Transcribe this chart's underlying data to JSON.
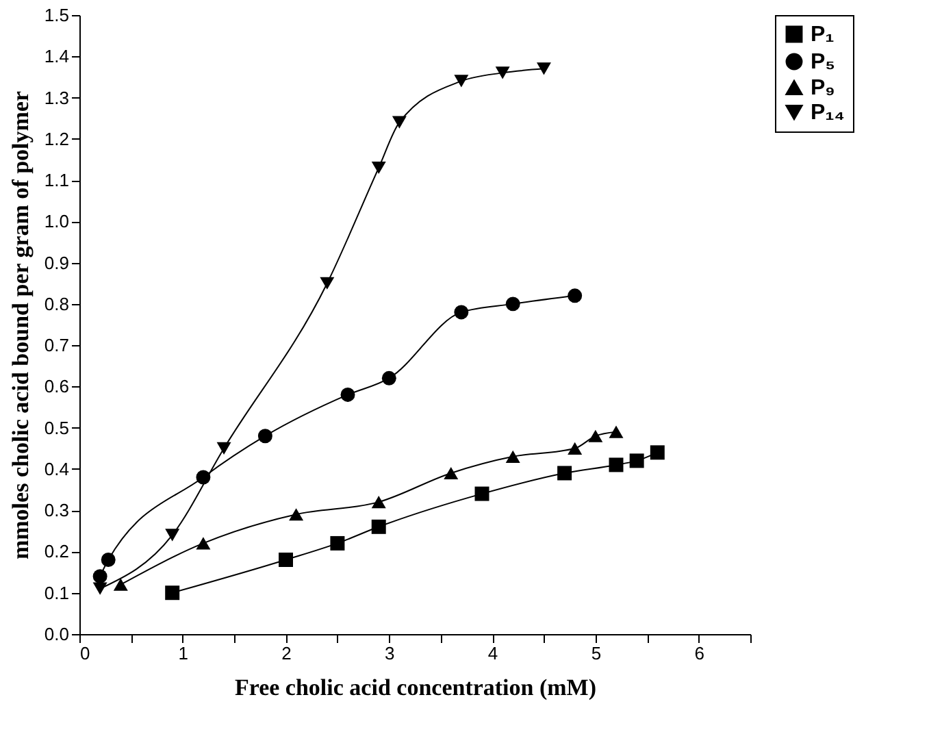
{
  "chart_data": {
    "type": "line",
    "xlabel": "Free cholic acid concentration (mM)",
    "ylabel": "mmoles cholic acid bound per gram of polymer",
    "xlim": [
      0,
      6.5
    ],
    "xticks": [
      0,
      {
        "value": 0.5,
        "label": null
      },
      1,
      {
        "value": 1.5,
        "label": null
      },
      2,
      {
        "value": 2.5,
        "label": null
      },
      3,
      {
        "value": 3.5,
        "label": null
      },
      4,
      {
        "value": 4.5,
        "label": null
      },
      5,
      {
        "value": 5.5,
        "label": null
      },
      6,
      {
        "value": 6.5,
        "label": null
      }
    ],
    "ylim": [
      0,
      1.5
    ],
    "yticks": [
      {
        "value": 0,
        "label": "0.0"
      },
      0.1,
      0.2,
      0.3,
      0.4,
      0.5,
      0.6,
      0.7,
      0.8,
      0.9,
      {
        "value": 1.0,
        "label": "1.0"
      },
      1.1,
      1.2,
      1.3,
      1.4,
      1.5
    ],
    "grid": false,
    "legend": "right",
    "line_style": "solid",
    "series": [
      {
        "name": "P₁",
        "color": "#000000",
        "marker": "square",
        "x": [
          0.9,
          2.0,
          2.5,
          2.9,
          3.9,
          4.7,
          5.2,
          5.4,
          5.6
        ],
        "values": [
          0.1,
          0.18,
          0.22,
          0.26,
          0.34,
          0.39,
          0.41,
          0.42,
          0.44
        ]
      },
      {
        "name": "P₅",
        "color": "#000000",
        "marker": "circle",
        "x": [
          0.2,
          0.28,
          1.2,
          1.8,
          2.6,
          3.0,
          3.7,
          4.2,
          4.8
        ],
        "values": [
          0.14,
          0.18,
          0.38,
          0.48,
          0.58,
          0.62,
          0.78,
          0.8,
          0.82
        ]
      },
      {
        "name": "P₉",
        "color": "#000000",
        "marker": "triangle",
        "x": [
          0.4,
          1.2,
          2.1,
          2.9,
          3.6,
          4.2,
          4.8,
          5.0,
          5.2
        ],
        "values": [
          0.12,
          0.22,
          0.29,
          0.32,
          0.39,
          0.43,
          0.45,
          0.48,
          0.49
        ]
      },
      {
        "name": "P₁₄",
        "color": "#000000",
        "marker": "triangle-down",
        "x": [
          0.2,
          0.9,
          1.4,
          2.4,
          2.9,
          3.1,
          3.7,
          4.1,
          4.5
        ],
        "values": [
          0.11,
          0.24,
          0.45,
          0.85,
          1.13,
          1.24,
          1.34,
          1.36,
          1.37
        ]
      }
    ]
  }
}
